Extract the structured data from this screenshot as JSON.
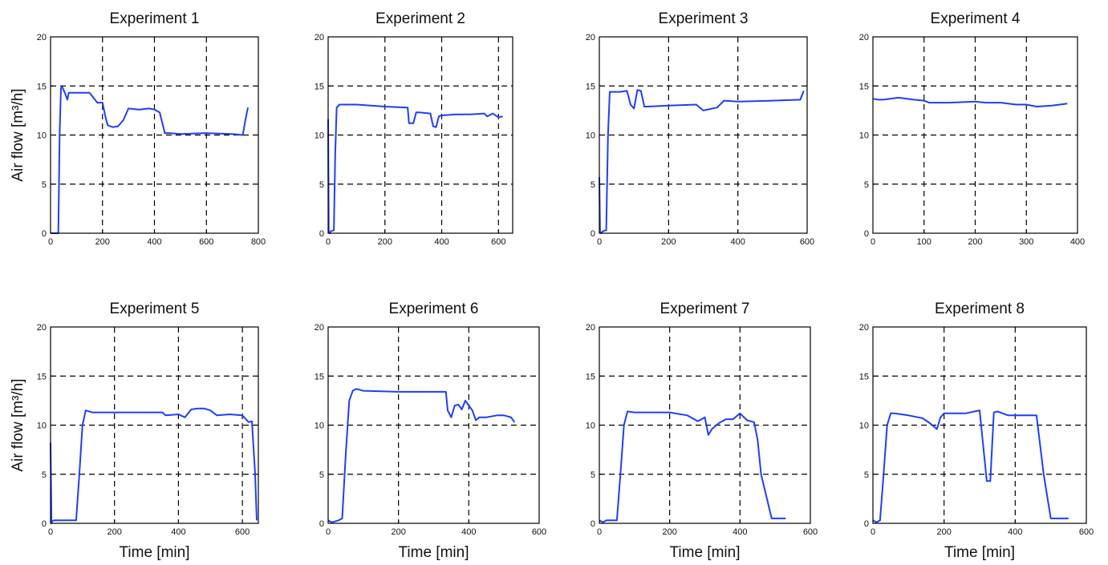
{
  "chart_data": [
    {
      "type": "line",
      "title": "Experiment 1",
      "xlabel": "",
      "ylabel": "Air flow [m³/h]",
      "xlim": [
        0,
        800
      ],
      "ylim": [
        0,
        20
      ],
      "xticks": [
        0,
        200,
        400,
        600,
        800
      ],
      "yticks": [
        0,
        5,
        10,
        15,
        20
      ],
      "grid": true,
      "x": [
        0,
        10,
        30,
        35,
        40,
        45,
        55,
        65,
        70,
        80,
        100,
        150,
        180,
        200,
        210,
        220,
        240,
        260,
        280,
        300,
        340,
        380,
        400,
        420,
        440,
        460,
        500,
        600,
        700,
        740,
        750,
        760
      ],
      "y": [
        0,
        0,
        0,
        10,
        14.8,
        14.9,
        14.3,
        13.6,
        14.3,
        14.3,
        14.3,
        14.3,
        13.3,
        13.3,
        12.0,
        11.0,
        10.8,
        10.9,
        11.5,
        12.7,
        12.6,
        12.7,
        12.6,
        12.3,
        10.2,
        10.2,
        10.1,
        10.2,
        10.1,
        10.0,
        11.5,
        12.8
      ],
      "series": [
        {
          "color": "#1f3ff5"
        }
      ]
    },
    {
      "type": "line",
      "title": "Experiment 2",
      "xlabel": "",
      "ylabel": "",
      "xlim": [
        0,
        650
      ],
      "ylim": [
        0,
        20
      ],
      "xticks": [
        0,
        200,
        400,
        600
      ],
      "yticks": [
        0,
        5,
        10,
        15,
        20
      ],
      "grid": true,
      "x": [
        0,
        2,
        5,
        10,
        20,
        25,
        30,
        40,
        100,
        200,
        280,
        285,
        300,
        310,
        320,
        360,
        370,
        380,
        390,
        400,
        450,
        500,
        550,
        560,
        580,
        600,
        615
      ],
      "y": [
        11.6,
        0.3,
        0,
        0.2,
        0.3,
        8,
        12.8,
        13.1,
        13.1,
        12.9,
        12.8,
        11.2,
        11.2,
        12.3,
        12.3,
        12.2,
        10.9,
        10.8,
        11.9,
        12.0,
        12.1,
        12.1,
        12.2,
        11.9,
        12.2,
        11.8,
        11.9
      ],
      "series": [
        {
          "color": "#1f3ff5"
        }
      ]
    },
    {
      "type": "line",
      "title": "Experiment 3",
      "xlabel": "",
      "ylabel": "",
      "xlim": [
        0,
        600
      ],
      "ylim": [
        0,
        20
      ],
      "xticks": [
        0,
        200,
        400,
        600
      ],
      "yticks": [
        0,
        5,
        10,
        15,
        20
      ],
      "grid": true,
      "x": [
        0,
        2,
        5,
        10,
        20,
        25,
        30,
        60,
        80,
        90,
        100,
        110,
        120,
        130,
        140,
        200,
        280,
        300,
        340,
        360,
        400,
        500,
        580,
        590
      ],
      "y": [
        5.7,
        0.2,
        0,
        0.2,
        0.3,
        10,
        14.4,
        14.4,
        14.5,
        13.1,
        12.7,
        14.6,
        14.5,
        12.9,
        12.9,
        13.0,
        13.1,
        12.5,
        12.8,
        13.5,
        13.4,
        13.5,
        13.6,
        14.5
      ],
      "series": [
        {
          "color": "#1f3ff5"
        }
      ]
    },
    {
      "type": "line",
      "title": "Experiment 4",
      "xlabel": "",
      "ylabel": "",
      "xlim": [
        0,
        400
      ],
      "ylim": [
        0,
        20
      ],
      "xticks": [
        0,
        100,
        200,
        300,
        400
      ],
      "yticks": [
        0,
        5,
        10,
        15,
        20
      ],
      "grid": true,
      "x": [
        0,
        10,
        20,
        50,
        80,
        100,
        110,
        120,
        150,
        200,
        220,
        250,
        280,
        300,
        320,
        350,
        380
      ],
      "y": [
        13.7,
        13.6,
        13.6,
        13.8,
        13.6,
        13.5,
        13.3,
        13.3,
        13.3,
        13.4,
        13.3,
        13.3,
        13.1,
        13.1,
        12.9,
        13.0,
        13.2
      ],
      "series": [
        {
          "color": "#1f3ff5"
        }
      ]
    },
    {
      "type": "line",
      "title": "Experiment 5",
      "xlabel": "Time [min]",
      "ylabel": "Air flow [m³/h]",
      "xlim": [
        0,
        650
      ],
      "ylim": [
        0,
        20
      ],
      "xticks": [
        0,
        200,
        400,
        600
      ],
      "yticks": [
        0,
        5,
        10,
        15,
        20
      ],
      "grid": true,
      "x": [
        0,
        3,
        5,
        10,
        20,
        80,
        90,
        100,
        110,
        130,
        200,
        300,
        350,
        360,
        400,
        420,
        440,
        460,
        480,
        500,
        520,
        560,
        600,
        620,
        630,
        640,
        645
      ],
      "y": [
        8.2,
        0,
        0.2,
        0.3,
        0.3,
        0.3,
        5,
        10,
        11.5,
        11.3,
        11.3,
        11.3,
        11.3,
        11.0,
        11.1,
        10.8,
        11.6,
        11.7,
        11.7,
        11.5,
        11.0,
        11.1,
        11.0,
        10.3,
        10.4,
        5,
        0.3
      ],
      "series": [
        {
          "color": "#1f3ff5"
        }
      ]
    },
    {
      "type": "line",
      "title": "Experiment 6",
      "xlabel": "Time [min]",
      "ylabel": "",
      "xlim": [
        0,
        600
      ],
      "ylim": [
        0,
        20
      ],
      "xticks": [
        0,
        200,
        400,
        600
      ],
      "yticks": [
        0,
        5,
        10,
        15,
        20
      ],
      "grid": true,
      "x": [
        0,
        10,
        30,
        40,
        50,
        60,
        70,
        80,
        100,
        200,
        300,
        335,
        340,
        350,
        360,
        370,
        380,
        390,
        400,
        410,
        420,
        430,
        450,
        480,
        500,
        520,
        530
      ],
      "y": [
        0.3,
        0.1,
        0.3,
        0.5,
        7,
        12.5,
        13.5,
        13.7,
        13.5,
        13.4,
        13.4,
        13.4,
        11.5,
        10.8,
        12.0,
        12.1,
        11.6,
        12.5,
        12.0,
        11.5,
        10.5,
        10.8,
        10.8,
        11.0,
        11.0,
        10.8,
        10.3
      ],
      "series": [
        {
          "color": "#1f3ff5"
        }
      ]
    },
    {
      "type": "line",
      "title": "Experiment 7",
      "xlabel": "Time [min]",
      "ylabel": "",
      "xlim": [
        0,
        600
      ],
      "ylim": [
        0,
        20
      ],
      "xticks": [
        0,
        200,
        400,
        600
      ],
      "yticks": [
        0,
        5,
        10,
        15,
        20
      ],
      "grid": true,
      "x": [
        0,
        10,
        20,
        30,
        50,
        60,
        70,
        80,
        100,
        150,
        200,
        250,
        280,
        300,
        310,
        320,
        340,
        360,
        380,
        400,
        420,
        440,
        450,
        460,
        480,
        490,
        500,
        530
      ],
      "y": [
        0.3,
        0.1,
        0.3,
        0.3,
        0.3,
        5,
        10,
        11.4,
        11.3,
        11.3,
        11.3,
        11.0,
        10.4,
        10.8,
        9.0,
        9.6,
        10.2,
        10.6,
        10.6,
        11.2,
        10.5,
        10.3,
        8.5,
        5,
        2,
        0.5,
        0.5,
        0.5
      ],
      "series": [
        {
          "color": "#1f3ff5"
        }
      ]
    },
    {
      "type": "line",
      "title": "Experiment 8",
      "xlabel": "Time [min]",
      "ylabel": "",
      "xlim": [
        0,
        600
      ],
      "ylim": [
        0,
        20
      ],
      "xticks": [
        0,
        200,
        400,
        600
      ],
      "yticks": [
        0,
        5,
        10,
        15,
        20
      ],
      "grid": true,
      "x": [
        0,
        10,
        20,
        30,
        40,
        50,
        60,
        100,
        140,
        160,
        180,
        190,
        200,
        260,
        300,
        320,
        330,
        340,
        350,
        380,
        420,
        460,
        480,
        500,
        510,
        550
      ],
      "y": [
        0.3,
        0.1,
        0.3,
        5,
        10,
        11.2,
        11.2,
        11.0,
        10.7,
        10.2,
        9.6,
        10.8,
        11.2,
        11.2,
        11.5,
        4.3,
        4.3,
        11.3,
        11.4,
        11.0,
        11.0,
        11.0,
        5,
        0.5,
        0.5,
        0.5
      ],
      "series": [
        {
          "color": "#1f3ff5"
        }
      ]
    }
  ]
}
